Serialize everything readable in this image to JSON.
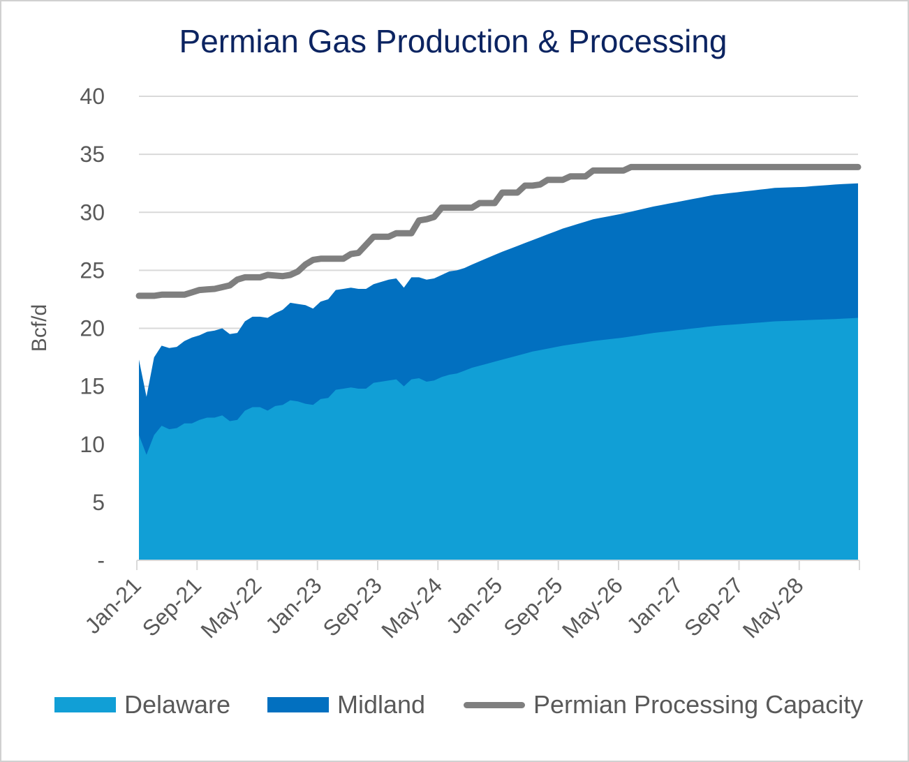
{
  "chart_data": {
    "type": "area",
    "title": "Permian Gas Production & Processing",
    "xlabel": "",
    "ylabel": "Bcf/d",
    "ylim": [
      0,
      40
    ],
    "yticks": [
      "-",
      "5",
      "10",
      "15",
      "20",
      "25",
      "30",
      "35",
      "40"
    ],
    "xticks": [
      "Jan-21",
      "Sep-21",
      "May-22",
      "Jan-23",
      "Sep-23",
      "May-24",
      "Jan-25",
      "Sep-25",
      "May-26",
      "Jan-27",
      "Sep-27",
      "May-28"
    ],
    "x_start": "Jan-21",
    "x_end": "Dec-28",
    "grid": "horizontal",
    "legend_position": "bottom",
    "series": [
      {
        "name": "Delaware",
        "kind": "stacked-area",
        "color": "#119fd6",
        "points": [
          [
            0,
            10.8
          ],
          [
            1,
            9.1
          ],
          [
            2,
            10.8
          ],
          [
            3,
            11.6
          ],
          [
            4,
            11.3
          ],
          [
            5,
            11.4
          ],
          [
            6,
            11.8
          ],
          [
            7,
            11.8
          ],
          [
            8,
            12.1
          ],
          [
            9,
            12.3
          ],
          [
            10,
            12.3
          ],
          [
            11,
            12.5
          ],
          [
            12,
            12.0
          ],
          [
            13,
            12.1
          ],
          [
            14,
            12.9
          ],
          [
            15,
            13.2
          ],
          [
            16,
            13.2
          ],
          [
            17,
            12.9
          ],
          [
            18,
            13.3
          ],
          [
            19,
            13.4
          ],
          [
            20,
            13.8
          ],
          [
            21,
            13.7
          ],
          [
            22,
            13.5
          ],
          [
            23,
            13.4
          ],
          [
            24,
            13.9
          ],
          [
            25,
            14.0
          ],
          [
            26,
            14.7
          ],
          [
            27,
            14.8
          ],
          [
            28,
            14.9
          ],
          [
            29,
            14.8
          ],
          [
            30,
            14.8
          ],
          [
            31,
            15.3
          ],
          [
            32,
            15.4
          ],
          [
            33,
            15.5
          ],
          [
            34,
            15.6
          ],
          [
            35,
            15.0
          ],
          [
            36,
            15.6
          ],
          [
            37,
            15.7
          ],
          [
            38,
            15.4
          ],
          [
            39,
            15.5
          ],
          [
            40,
            15.8
          ],
          [
            41,
            16.0
          ],
          [
            42,
            16.1
          ],
          [
            44,
            16.6
          ],
          [
            48,
            17.3
          ],
          [
            52,
            18.0
          ],
          [
            56,
            18.5
          ],
          [
            60,
            18.9
          ],
          [
            64,
            19.2
          ],
          [
            68,
            19.6
          ],
          [
            72,
            19.9
          ],
          [
            76,
            20.2
          ],
          [
            80,
            20.4
          ],
          [
            84,
            20.6
          ],
          [
            88,
            20.7
          ],
          [
            92,
            20.8
          ],
          [
            95,
            20.9
          ]
        ]
      },
      {
        "name": "Midland",
        "kind": "stacked-area",
        "color": "#0270c0",
        "total_points": [
          [
            0,
            17.3
          ],
          [
            1,
            14.1
          ],
          [
            2,
            17.5
          ],
          [
            3,
            18.5
          ],
          [
            4,
            18.3
          ],
          [
            5,
            18.4
          ],
          [
            6,
            18.9
          ],
          [
            7,
            19.2
          ],
          [
            8,
            19.4
          ],
          [
            9,
            19.7
          ],
          [
            10,
            19.8
          ],
          [
            11,
            20.0
          ],
          [
            12,
            19.5
          ],
          [
            13,
            19.6
          ],
          [
            14,
            20.6
          ],
          [
            15,
            21.0
          ],
          [
            16,
            21.0
          ],
          [
            17,
            20.9
          ],
          [
            18,
            21.3
          ],
          [
            19,
            21.6
          ],
          [
            20,
            22.2
          ],
          [
            21,
            22.1
          ],
          [
            22,
            22.0
          ],
          [
            23,
            21.7
          ],
          [
            24,
            22.3
          ],
          [
            25,
            22.5
          ],
          [
            26,
            23.3
          ],
          [
            27,
            23.4
          ],
          [
            28,
            23.5
          ],
          [
            29,
            23.4
          ],
          [
            30,
            23.4
          ],
          [
            31,
            23.8
          ],
          [
            32,
            24.0
          ],
          [
            33,
            24.2
          ],
          [
            34,
            24.3
          ],
          [
            35,
            23.5
          ],
          [
            36,
            24.4
          ],
          [
            37,
            24.4
          ],
          [
            38,
            24.2
          ],
          [
            39,
            24.3
          ],
          [
            40,
            24.6
          ],
          [
            41,
            24.9
          ],
          [
            42,
            25.0
          ],
          [
            43,
            25.2
          ],
          [
            44,
            25.5
          ],
          [
            48,
            26.6
          ],
          [
            52,
            27.6
          ],
          [
            56,
            28.6
          ],
          [
            60,
            29.4
          ],
          [
            64,
            29.9
          ],
          [
            68,
            30.5
          ],
          [
            72,
            31.0
          ],
          [
            76,
            31.5
          ],
          [
            80,
            31.8
          ],
          [
            84,
            32.1
          ],
          [
            88,
            32.2
          ],
          [
            92,
            32.4
          ],
          [
            95,
            32.5
          ]
        ]
      },
      {
        "name": "Permian Processing Capacity",
        "kind": "line",
        "color": "#7f7f7f",
        "points": [
          [
            0,
            22.8
          ],
          [
            2,
            22.8
          ],
          [
            3,
            22.9
          ],
          [
            6,
            22.9
          ],
          [
            8,
            23.3
          ],
          [
            10,
            23.4
          ],
          [
            12,
            23.7
          ],
          [
            13,
            24.2
          ],
          [
            14,
            24.4
          ],
          [
            16,
            24.4
          ],
          [
            17,
            24.6
          ],
          [
            19,
            24.5
          ],
          [
            20,
            24.6
          ],
          [
            21,
            24.9
          ],
          [
            22,
            25.5
          ],
          [
            23,
            25.9
          ],
          [
            24,
            26.0
          ],
          [
            27,
            26.0
          ],
          [
            28,
            26.4
          ],
          [
            29,
            26.5
          ],
          [
            31,
            27.9
          ],
          [
            33,
            27.9
          ],
          [
            34,
            28.2
          ],
          [
            36,
            28.2
          ],
          [
            37,
            29.3
          ],
          [
            38,
            29.4
          ],
          [
            39,
            29.6
          ],
          [
            40,
            30.4
          ],
          [
            44,
            30.4
          ],
          [
            45,
            30.8
          ],
          [
            47,
            30.8
          ],
          [
            48,
            31.7
          ],
          [
            50,
            31.7
          ],
          [
            51,
            32.3
          ],
          [
            52,
            32.3
          ],
          [
            53,
            32.4
          ],
          [
            54,
            32.8
          ],
          [
            56,
            32.8
          ],
          [
            57,
            33.1
          ],
          [
            59,
            33.1
          ],
          [
            60,
            33.6
          ],
          [
            64,
            33.6
          ],
          [
            65,
            33.9
          ],
          [
            95,
            33.9
          ]
        ]
      }
    ]
  }
}
